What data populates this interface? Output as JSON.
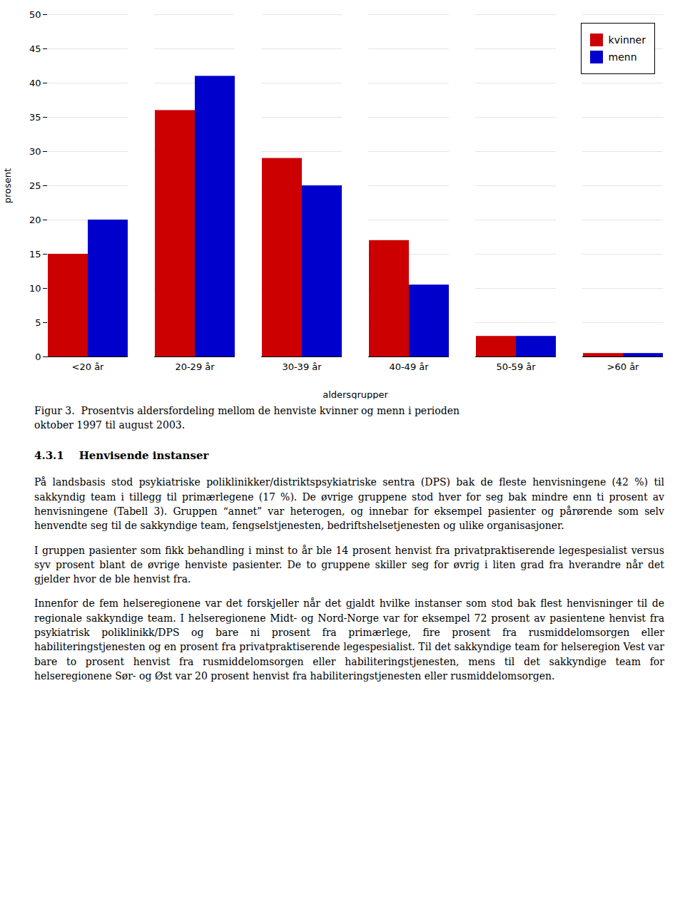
{
  "chart_data": {
    "type": "bar",
    "categories": [
      "<20 år",
      "20-29 år",
      "30-39 år",
      "40-49 år",
      "50-59 år",
      ">60 år"
    ],
    "series": [
      {
        "name": "kvinner",
        "color": "#cc0000",
        "values": [
          15,
          36,
          29,
          17,
          3,
          0.5
        ]
      },
      {
        "name": "menn",
        "color": "#0000cc",
        "values": [
          20,
          41,
          25,
          10.5,
          3,
          0.5
        ]
      }
    ],
    "xlabel": "aldersgrupper",
    "ylabel": "prosent",
    "ylim": [
      0,
      50
    ],
    "yticks": [
      0,
      5,
      10,
      15,
      20,
      25,
      30,
      35,
      40,
      45,
      50
    ],
    "grid": true,
    "legend": "upper right",
    "annotations": [
      "Figur 3.  Prosentvis aldersfordeling mellom de henviste kvinner og menn i perioden",
      "oktober 1997 til august 2003.",
      "4.3.1    Henvisende instanser",
      "På landsbasis stod psykiatriske poliklinikker/distriktspsykiatriske sentra (DPS) bak de fleste henvisningene (42 %) til sakkyndig team i tillegg til primærlegene (17 %). De øvrige gruppene stod hver for seg bak mindre enn ti prosent av henvisningene (Tabell 3). Gruppen “annet” var heterogen, og innebar for eksempel pasienter og pårørende som selv henvendte seg til de sakkyndige team, fengselstjenesten, bedriftshelsetjenesten og ulike organisasjoner.",
      "I gruppen pasienter som fikk behandling i minst to år ble 14 prosent henvist fra privatpraktiserende legespesialist versus syv prosent blant de øvrige henviste pasienter. De to gruppene skiller seg for øvrig i liten grad fra hverandre når det gjelder hvor de ble henvist fra.",
      "Innenfor de fem helseregionene var det forskjeller når det gjaldt hvilke instanser som stod bak flest henvisninger til de regionale sakkyndige team. I helseregionene Midt- og Nord-Norge var for eksempel 72 prosent av pasientene henvist fra psykiatrisk poliklinikk/DPS og bare ni prosent fra primærlege, fire prosent fra rusmiddelomsorgen eller habiliteringstjenesten og en prosent fra privatpraktiserende legespesialist. Til det sakkyndige team for helseregion Vest var bare to prosent henvist fra rusmiddelomsorgen eller habiliteringstjenesten, mens til det sakkyndige team for helseregionene Sør- og Øst var 20 prosent henvist fra habiliteringstjenesten eller rusmiddelomsorgen."
    ]
  }
}
